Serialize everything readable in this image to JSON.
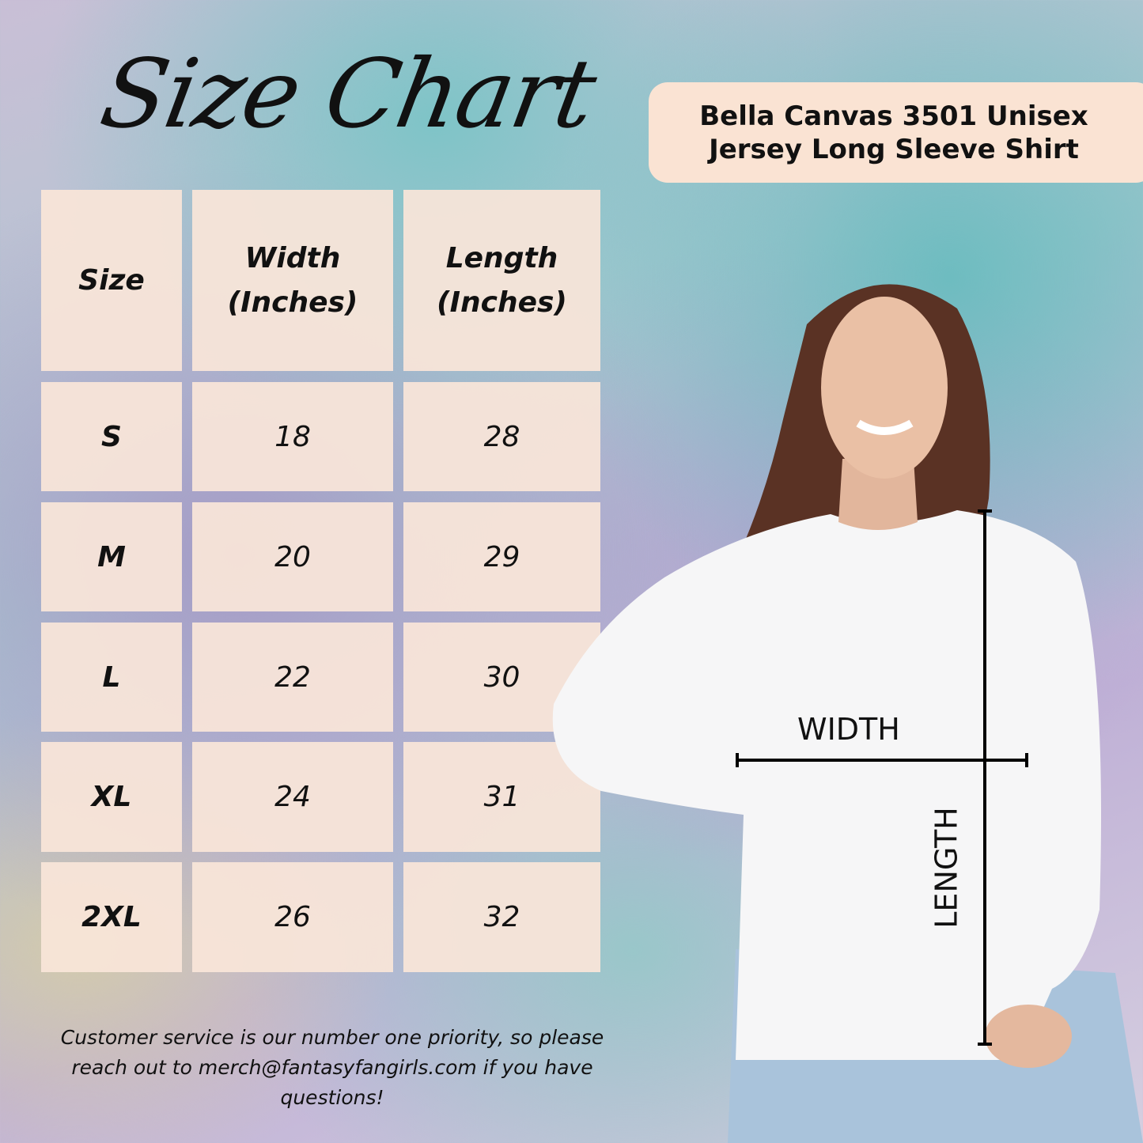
{
  "title": "Size Chart",
  "product": "Bella Canvas 3501 Unisex Jersey Long Sleeve Shirt",
  "table": {
    "headers": [
      "Size",
      "Width (Inches)",
      "Length (Inches)"
    ],
    "rows": [
      [
        "S",
        "18",
        "28"
      ],
      [
        "M",
        "20",
        "29"
      ],
      [
        "L",
        "22",
        "30"
      ],
      [
        "XL",
        "24",
        "31"
      ],
      [
        "2XL",
        "26",
        "32"
      ]
    ]
  },
  "measure_labels": {
    "width": "WIDTH",
    "length": "LENGTH"
  },
  "footer": "Customer service is our number one priority, so please reach out to merch@fantasyfangirls.com if you have questions!",
  "colors": {
    "cell": "#f9e5d8",
    "badge": "#fae3d3",
    "text": "#111111"
  }
}
